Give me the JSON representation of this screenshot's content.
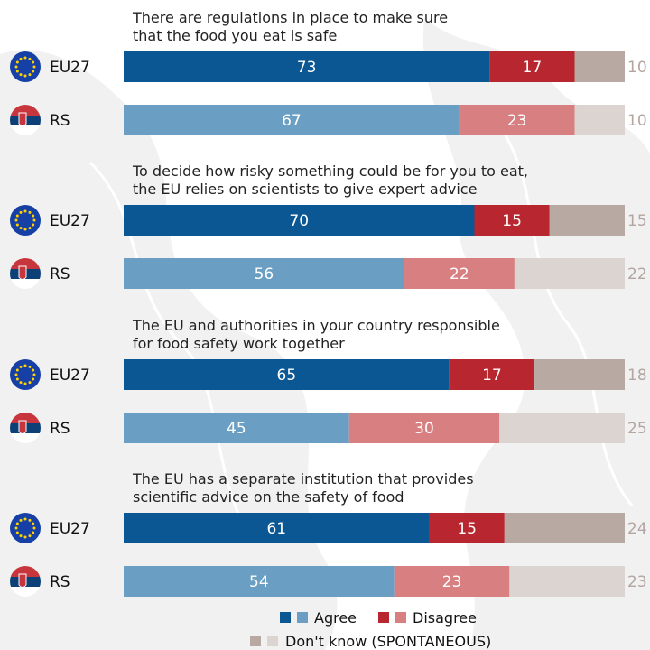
{
  "colors": {
    "agree_eu": "#0b5794",
    "agree_rs": "#6a9ec2",
    "disagree_eu": "#b8262f",
    "disagree_rs": "#d87f82",
    "dk_eu": "#b8a9a2",
    "dk_rs": "#dcd4d0",
    "dk_text": "#b3a6a0"
  },
  "chart_data": {
    "type": "bar",
    "orientation": "horizontal-stacked",
    "series_order": [
      "Agree",
      "Disagree",
      "Don't know (SPONTANEOUS)"
    ],
    "groups": [
      {
        "question": [
          "There are regulations in place to make sure",
          "that the food you eat is safe"
        ],
        "rows": [
          {
            "country": "EU27",
            "flag": "eu-flag",
            "values": [
              73,
              17,
              10
            ]
          },
          {
            "country": "RS",
            "flag": "serbia-flag",
            "values": [
              67,
              23,
              10
            ]
          }
        ]
      },
      {
        "question": [
          "To decide how risky something could be for you to eat,",
          "the EU relies on scientists to give expert advice"
        ],
        "rows": [
          {
            "country": "EU27",
            "flag": "eu-flag",
            "values": [
              70,
              15,
              15
            ]
          },
          {
            "country": "RS",
            "flag": "serbia-flag",
            "values": [
              56,
              22,
              22
            ]
          }
        ]
      },
      {
        "question": [
          "The EU and authorities in your country responsible",
          "for food safety work together"
        ],
        "rows": [
          {
            "country": "EU27",
            "flag": "eu-flag",
            "values": [
              65,
              17,
              18
            ]
          },
          {
            "country": "RS",
            "flag": "serbia-flag",
            "values": [
              45,
              30,
              25
            ]
          }
        ]
      },
      {
        "question": [
          "The EU has a separate institution that provides",
          "scientific advice on the safety of food"
        ],
        "rows": [
          {
            "country": "EU27",
            "flag": "eu-flag",
            "values": [
              61,
              15,
              24
            ]
          },
          {
            "country": "RS",
            "flag": "serbia-flag",
            "values": [
              54,
              23,
              23
            ]
          }
        ]
      }
    ],
    "legend": {
      "agree": "Agree",
      "disagree": "Disagree",
      "dont_know": "Don't know (SPONTANEOUS)"
    }
  }
}
